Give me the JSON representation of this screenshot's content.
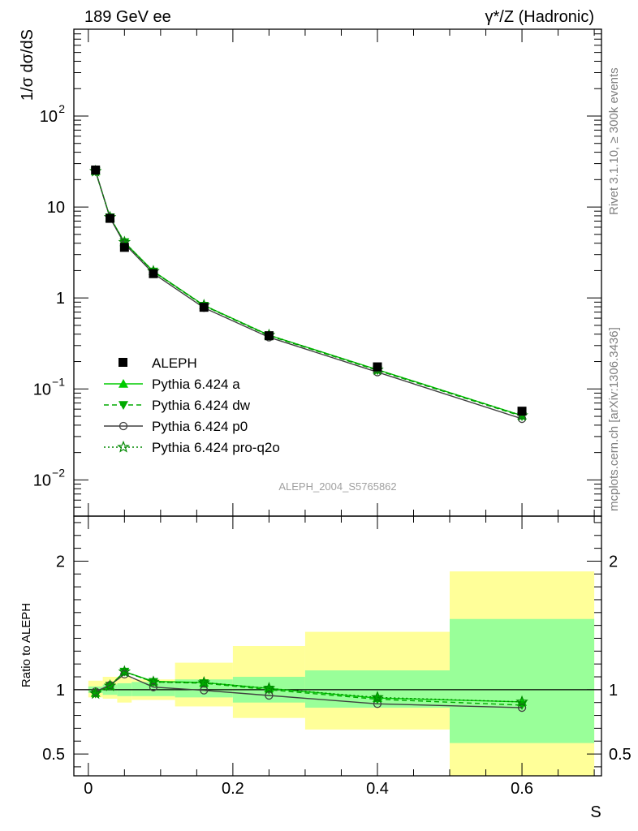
{
  "header": {
    "left": "189 GeV ee",
    "right": "γ*/Z (Hadronic)"
  },
  "side_text": {
    "version": "Rivet 3.1.10, ≥ 300k events",
    "source": "mcplots.cern.ch [arXiv:1306.3436]"
  },
  "analysis_id": "ALEPH_2004_S5765862",
  "colors": {
    "pythia_a": "#00cc00",
    "pythia_dw": "#00aa00",
    "pythia_p0": "#404040",
    "pythia_proq2o": "#008800",
    "band_outer": "#ffff99",
    "band_inner": "#99ff99",
    "data": "#000000"
  },
  "chart_data": [
    {
      "type": "line",
      "panel": "main",
      "ylabel": "1/σ  dσ/dS",
      "yscale": "log",
      "ylim": [
        0.004,
        900
      ],
      "xlim": [
        -0.02,
        0.71
      ],
      "y_ticks": [
        {
          "v": 0.01,
          "base": "10",
          "exp": "−2"
        },
        {
          "v": 0.1,
          "base": "10",
          "exp": "−1"
        },
        {
          "v": 1,
          "base": "1",
          "exp": ""
        },
        {
          "v": 10,
          "base": "10",
          "exp": ""
        },
        {
          "v": 100,
          "base": "10",
          "exp": "2"
        }
      ],
      "data_series": {
        "name": "ALEPH",
        "x": [
          0.01,
          0.03,
          0.05,
          0.09,
          0.16,
          0.25,
          0.4,
          0.6
        ],
        "y": [
          25.5,
          7.5,
          3.6,
          1.85,
          0.79,
          0.385,
          0.175,
          0.057
        ]
      },
      "series": [
        {
          "name": "Pythia 6.424 a",
          "style": "solid",
          "marker": "triangle-up",
          "x": [
            0.01,
            0.03,
            0.05,
            0.09,
            0.16,
            0.25,
            0.4,
            0.6
          ],
          "y": [
            24.8,
            7.7,
            4.1,
            1.97,
            0.83,
            0.39,
            0.163,
            0.051
          ]
        },
        {
          "name": "Pythia 6.424 dw",
          "style": "dashed",
          "marker": "triangle-down",
          "x": [
            0.01,
            0.03,
            0.05,
            0.09,
            0.16,
            0.25,
            0.4,
            0.6
          ],
          "y": [
            24.6,
            7.7,
            4.1,
            1.95,
            0.82,
            0.385,
            0.16,
            0.05
          ]
        },
        {
          "name": "Pythia 6.424 p0",
          "style": "solid",
          "marker": "open-circle",
          "x": [
            0.01,
            0.03,
            0.05,
            0.09,
            0.16,
            0.25,
            0.4,
            0.6
          ],
          "y": [
            25.0,
            7.6,
            3.95,
            1.86,
            0.78,
            0.37,
            0.153,
            0.047
          ]
        },
        {
          "name": "Pythia 6.424 pro-q2o",
          "style": "dotted",
          "marker": "star",
          "x": [
            0.01,
            0.03,
            0.05,
            0.09,
            0.16,
            0.25,
            0.4,
            0.6
          ],
          "y": [
            24.7,
            7.7,
            4.1,
            1.96,
            0.83,
            0.39,
            0.162,
            0.051
          ]
        }
      ]
    },
    {
      "type": "line",
      "panel": "ratio",
      "xlabel": "S",
      "ylabel": "Ratio to ALEPH",
      "ylim": [
        0.33,
        2.35
      ],
      "xlim": [
        -0.02,
        0.71
      ],
      "x_ticks": [
        {
          "v": 0,
          "label": "0"
        },
        {
          "v": 0.2,
          "label": "0.2"
        },
        {
          "v": 0.4,
          "label": "0.4"
        },
        {
          "v": 0.6,
          "label": "0.6"
        }
      ],
      "y_ticks": [
        {
          "v": 0.5,
          "label": "0.5"
        },
        {
          "v": 1,
          "label": "1"
        },
        {
          "v": 2,
          "label": "2"
        }
      ],
      "bands": [
        {
          "x0": 0.0,
          "x1": 0.02,
          "inner": [
            0.975,
            1.025
          ],
          "outer": [
            0.94,
            1.07
          ]
        },
        {
          "x0": 0.02,
          "x1": 0.04,
          "inner": [
            0.96,
            1.04
          ],
          "outer": [
            0.93,
            1.1
          ]
        },
        {
          "x0": 0.04,
          "x1": 0.06,
          "inner": [
            0.95,
            1.05
          ],
          "outer": [
            0.9,
            1.1
          ]
        },
        {
          "x0": 0.06,
          "x1": 0.12,
          "inner": [
            0.95,
            1.06
          ],
          "outer": [
            0.92,
            1.08
          ]
        },
        {
          "x0": 0.12,
          "x1": 0.2,
          "inner": [
            0.94,
            1.08
          ],
          "outer": [
            0.87,
            1.21
          ]
        },
        {
          "x0": 0.2,
          "x1": 0.3,
          "inner": [
            0.9,
            1.1
          ],
          "outer": [
            0.78,
            1.34
          ]
        },
        {
          "x0": 0.3,
          "x1": 0.5,
          "inner": [
            0.86,
            1.15
          ],
          "outer": [
            0.69,
            1.45
          ]
        },
        {
          "x0": 0.5,
          "x1": 0.7,
          "inner": [
            0.585,
            1.55
          ],
          "outer": [
            0.33,
            1.92
          ]
        }
      ],
      "series": [
        {
          "name": "Pythia 6.424 a",
          "x": [
            0.01,
            0.03,
            0.05,
            0.09,
            0.16,
            0.25,
            0.4,
            0.6
          ],
          "y": [
            0.975,
            1.03,
            1.14,
            1.065,
            1.055,
            1.01,
            0.935,
            0.905
          ]
        },
        {
          "name": "Pythia 6.424 dw",
          "x": [
            0.01,
            0.03,
            0.05,
            0.09,
            0.16,
            0.25,
            0.4,
            0.6
          ],
          "y": [
            0.97,
            1.03,
            1.14,
            1.06,
            1.05,
            1.0,
            0.925,
            0.88
          ]
        },
        {
          "name": "Pythia 6.424 p0",
          "x": [
            0.01,
            0.03,
            0.05,
            0.09,
            0.16,
            0.25,
            0.4,
            0.6
          ],
          "y": [
            0.985,
            1.035,
            1.12,
            1.02,
            0.995,
            0.955,
            0.89,
            0.86
          ]
        },
        {
          "name": "Pythia 6.424 pro-q2o",
          "x": [
            0.01,
            0.03,
            0.05,
            0.09,
            0.16,
            0.25,
            0.4,
            0.6
          ],
          "y": [
            0.97,
            1.03,
            1.14,
            1.06,
            1.055,
            1.01,
            0.94,
            0.905
          ]
        }
      ]
    }
  ]
}
